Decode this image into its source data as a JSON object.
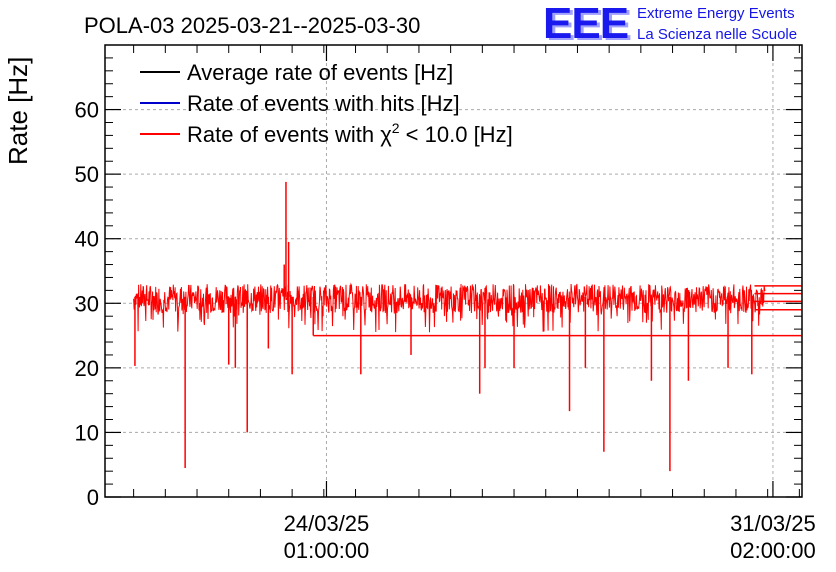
{
  "chart_data": {
    "type": "line",
    "title": "POLA-03 2025-03-21--2025-03-30",
    "ylabel": "Rate [Hz]",
    "xlabel": "",
    "ylim": [
      0,
      70
    ],
    "yticks": [
      0,
      10,
      20,
      30,
      40,
      50,
      60
    ],
    "x_range": [
      "2025-03-20T13:10:00",
      "2025-03-31T13:00:00"
    ],
    "x_ticks": [
      {
        "x": "2025-03-24T01:00:00",
        "date": "24/03/25",
        "time": "01:00:00"
      },
      {
        "x": "2025-03-31T02:00:00",
        "date": "31/03/25",
        "time": "02:00:00"
      }
    ],
    "grid": true,
    "legend": {
      "placement": "top-left",
      "entries": [
        {
          "label_main": "Average rate of events [Hz]",
          "label_sup": "",
          "label_tail": "",
          "color": "#000000"
        },
        {
          "label_main": "Rate of events with hits [Hz]",
          "label_sup": "",
          "label_tail": "",
          "color": "#0000cc"
        },
        {
          "label_main": "Rate of events with χ",
          "label_sup": "2",
          "label_tail": " < 10.0 [Hz]",
          "color": "#ff0000"
        }
      ]
    },
    "series": [
      {
        "name": "Rate of events with χ2 < 10.0 [Hz]",
        "color": "#ff0000",
        "x_start": "2025-03-21T00:00:00",
        "x_end": "2025-03-30T23:00:00",
        "baseline": 31,
        "noise_band": [
          28.5,
          33
        ],
        "spikes": [
          {
            "x": "2025-03-21T00:30:00",
            "y": 20.3
          },
          {
            "x": "2025-03-21T19:30:00",
            "y": 4.5
          },
          {
            "x": "2025-03-22T12:00:00",
            "y": 20.5
          },
          {
            "x": "2025-03-22T14:30:00",
            "y": 20
          },
          {
            "x": "2025-03-22T19:00:00",
            "y": 10
          },
          {
            "x": "2025-03-23T03:00:00",
            "y": 23
          },
          {
            "x": "2025-03-23T09:00:00",
            "y": 36
          },
          {
            "x": "2025-03-23T09:40:00",
            "y": 48.8
          },
          {
            "x": "2025-03-23T10:40:00",
            "y": 39.5
          },
          {
            "x": "2025-03-23T12:00:00",
            "y": 19
          },
          {
            "x": "2025-03-23T20:00:00",
            "y": 25
          },
          {
            "x": "2025-03-24T14:00:00",
            "y": 19
          },
          {
            "x": "2025-03-25T09:00:00",
            "y": 22
          },
          {
            "x": "2025-03-26T11:00:00",
            "y": 16
          },
          {
            "x": "2025-03-26T13:00:00",
            "y": 20
          },
          {
            "x": "2025-03-27T00:00:00",
            "y": 20
          },
          {
            "x": "2025-03-27T21:00:00",
            "y": 13.3
          },
          {
            "x": "2025-03-28T03:00:00",
            "y": 20
          },
          {
            "x": "2025-03-28T10:00:00",
            "y": 7
          },
          {
            "x": "2025-03-29T04:00:00",
            "y": 18
          },
          {
            "x": "2025-03-29T11:00:00",
            "y": 4
          },
          {
            "x": "2025-03-29T18:00:00",
            "y": 18
          },
          {
            "x": "2025-03-30T09:00:00",
            "y": 20
          },
          {
            "x": "2025-03-30T18:00:00",
            "y": 19
          }
        ],
        "flat_segments": [
          {
            "from": "2025-03-23T20:00:00",
            "to": "2025-03-31T13:00:00",
            "y": 25
          },
          {
            "from": "2025-03-30T19:00:00",
            "to": "2025-03-31T13:00:00",
            "y": 32.7
          },
          {
            "from": "2025-03-30T19:00:00",
            "to": "2025-03-31T13:00:00",
            "y": 31.5
          },
          {
            "from": "2025-03-30T19:00:00",
            "to": "2025-03-31T13:00:00",
            "y": 30.3
          },
          {
            "from": "2025-03-30T19:00:00",
            "to": "2025-03-31T13:00:00",
            "y": 29
          }
        ]
      }
    ]
  },
  "logo": {
    "mark": "EEE",
    "line1": "Extreme Energy Events",
    "line2": "La Scienza nelle Scuole"
  }
}
